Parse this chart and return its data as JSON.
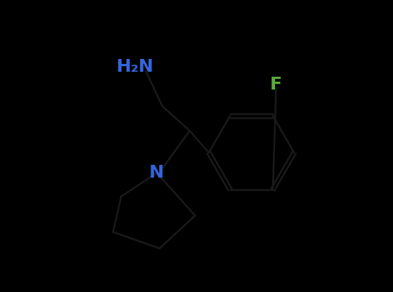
{
  "background_color": "#000000",
  "bond_color": "#1a1a1a",
  "bond_width": 1.8,
  "NH2_color": "#3366dd",
  "N_color": "#3366dd",
  "F_color": "#5aaa3c",
  "figsize": [
    5.53,
    4.11
  ],
  "dpi": 100,
  "H2N_label": "H₂N",
  "N_label": "N",
  "F_label": "F",
  "font_size": 18
}
